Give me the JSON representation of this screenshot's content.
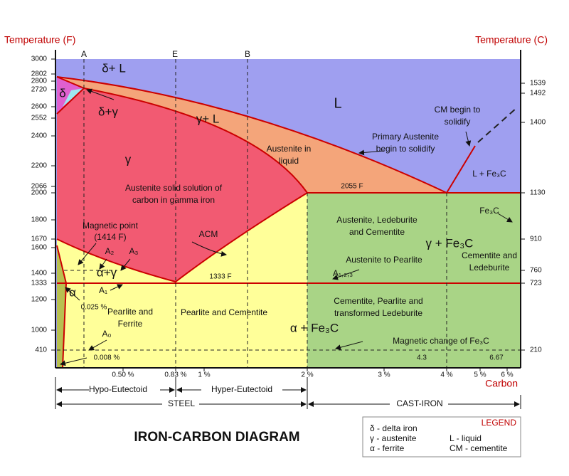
{
  "title": "IRON-CARBON DIAGRAM",
  "axes": {
    "left_title": "Temperature (F)",
    "right_title": "Temperature (C)",
    "x_title": "Carbon",
    "left_ticks": [
      "3000",
      "2802",
      "2800",
      "2720",
      "2600",
      "2552",
      "2400",
      "2200",
      "2066",
      "2000",
      "1800",
      "1670",
      "1600",
      "1400",
      "1333",
      "1200",
      "1000",
      "410"
    ],
    "right_ticks": [
      "1539",
      "1492",
      "1400",
      "1130",
      "910",
      "760",
      "723",
      "210"
    ],
    "x_ticks": [
      "0.50 %",
      "0.83 %",
      "1 %",
      "2 %",
      "3 %",
      "4 %",
      "5 %",
      "6 %"
    ],
    "top_lines": [
      "A",
      "E",
      "B"
    ]
  },
  "phases": {
    "delta_l": "δ+ L",
    "delta": "δ",
    "delta_gamma": "δ+γ",
    "l": "L",
    "gamma_l": "γ+ L",
    "gamma": "γ",
    "austenite_solid": [
      "Austenite solid solution of",
      "carbon in gamma iron"
    ],
    "austenite_liquid": [
      "Austenite in",
      "liquid"
    ],
    "primary_austenite": [
      "Primary Austenite",
      "begin to solidify"
    ],
    "cm_begin": [
      "CM begin to",
      "solidify"
    ],
    "t2055": "2055 F",
    "l_fe3c": "L + Fe₃C",
    "fe3c": "Fe₃C",
    "magnetic_point": [
      "Magnetic point",
      "(1414 F)"
    ],
    "acm": "ACM",
    "a2": "A₂",
    "a3": "A₃",
    "alpha_gamma": "α+γ",
    "t1333": "1333 F",
    "alpha": "α",
    "a1": "A₁",
    "c0025": "0.025 %",
    "pearlite_ferrite": [
      "Pearlite and",
      "Ferrite"
    ],
    "pearlite_cementite": "Pearlite and Cementite",
    "a0": "A₀",
    "c0008": "0.008 %",
    "aus_led_cem": [
      "Austenite, Ledeburite",
      "and Cementite"
    ],
    "aus_pearlite": "Austenite to Pearlite",
    "gamma_fe3c": "γ + Fe₃C",
    "cem_led": [
      "Cementite and",
      "Ledeburite"
    ],
    "a123": "A₁,₂,₃",
    "cem_pearl_led": [
      "Cementite, Pearlite and",
      "transformed Ledeburite"
    ],
    "alpha_fe3c": "α + Fe₃C",
    "magnetic_change": "Magnetic change of Fe₃C",
    "c43": "4.3",
    "c667": "6.67"
  },
  "ranges": {
    "hypo": "Hypo-Eutectoid",
    "hyper": "Hyper-Eutectoid",
    "steel": "STEEL",
    "cast_iron": "CAST-IRON"
  },
  "legend": {
    "title": "LEGEND",
    "items": [
      "δ - delta iron",
      "γ - austenite",
      "α - ferrite",
      "L - liquid",
      "CM - cementite"
    ]
  }
}
